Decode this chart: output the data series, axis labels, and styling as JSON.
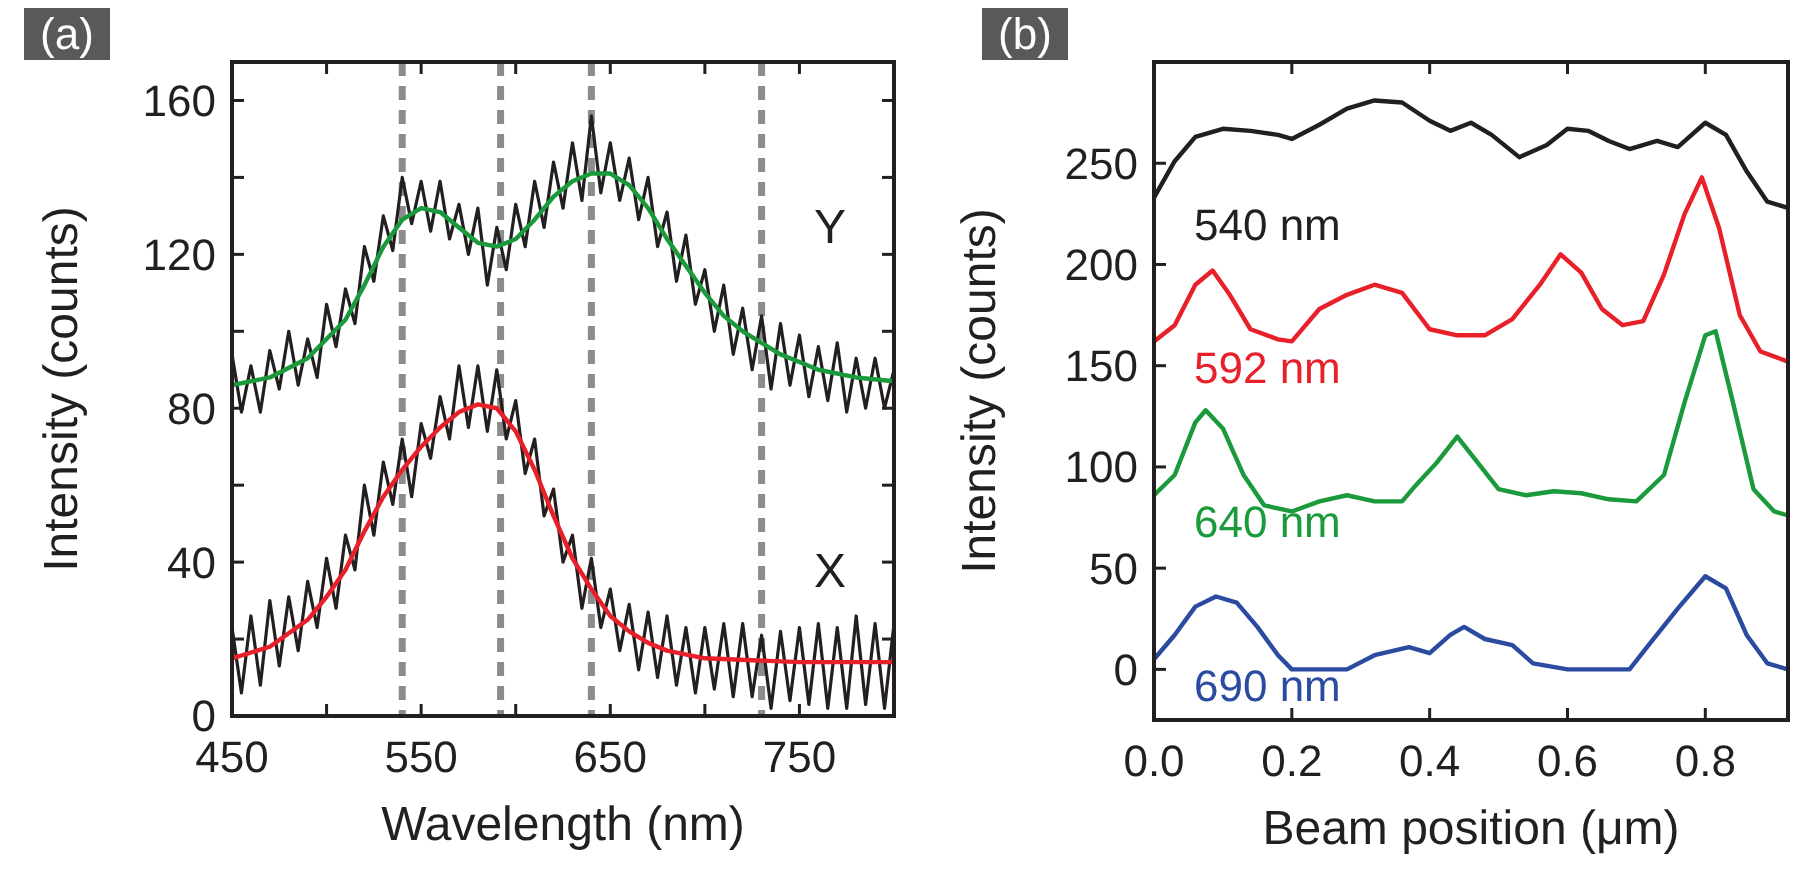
{
  "chart_data": [
    {
      "type": "line",
      "title": "(a)",
      "xlabel": "Wavelength (nm)",
      "ylabel": "Intensity (counts)",
      "xlim": [
        450,
        800
      ],
      "ylim": [
        0,
        170
      ],
      "xticks": [
        450,
        {
          "value": 500,
          "label": null
        },
        550,
        {
          "value": 600,
          "label": null
        },
        650,
        {
          "value": 700,
          "label": null
        },
        750
      ],
      "yticks": [
        0,
        {
          "value": 20,
          "label": null
        },
        40,
        {
          "value": 60,
          "label": null
        },
        80,
        {
          "value": 100,
          "label": null
        },
        120,
        {
          "value": 140,
          "label": null
        },
        160
      ],
      "ref_lines": [
        {
          "axis": "x",
          "value": 540,
          "color": "#8c8c8c",
          "line_style": "dashed"
        },
        {
          "axis": "x",
          "value": 592,
          "color": "#8c8c8c",
          "line_style": "dashed"
        },
        {
          "axis": "x",
          "value": 640,
          "color": "#8c8c8c",
          "line_style": "dashed"
        },
        {
          "axis": "x",
          "value": 730,
          "color": "#8c8c8c",
          "line_style": "dashed"
        }
      ],
      "annotations": [
        "Y",
        "X"
      ],
      "series": [
        {
          "color": "#231f20",
          "x": [
            450,
            455,
            460,
            465,
            470,
            475,
            480,
            485,
            490,
            495,
            500,
            505,
            510,
            515,
            520,
            525,
            530,
            535,
            540,
            545,
            550,
            555,
            560,
            565,
            570,
            575,
            580,
            585,
            590,
            595,
            600,
            605,
            610,
            615,
            620,
            625,
            630,
            635,
            640,
            645,
            650,
            655,
            660,
            665,
            670,
            675,
            680,
            685,
            690,
            695,
            700,
            705,
            710,
            715,
            720,
            725,
            730,
            735,
            740,
            745,
            750,
            755,
            760,
            765,
            770,
            775,
            780,
            785,
            790,
            795,
            800
          ],
          "values": [
            94,
            79,
            91,
            79,
            95,
            85,
            100,
            86,
            98,
            88,
            107,
            96,
            111,
            102,
            122,
            113,
            130,
            121,
            140,
            128,
            139,
            126,
            139,
            124,
            133,
            120,
            132,
            112,
            127,
            116,
            133,
            122,
            139,
            127,
            144,
            132,
            149,
            134,
            156,
            136,
            149,
            134,
            145,
            129,
            140,
            122,
            131,
            113,
            125,
            107,
            116,
            100,
            112,
            94,
            106,
            90,
            104,
            85,
            102,
            86,
            99,
            83,
            96,
            82,
            97,
            79,
            93,
            80,
            93,
            80,
            90
          ]
        },
        {
          "color": "#231f20",
          "x": [
            450,
            455,
            460,
            465,
            470,
            475,
            480,
            485,
            490,
            495,
            500,
            505,
            510,
            515,
            520,
            525,
            530,
            535,
            540,
            545,
            550,
            555,
            560,
            565,
            570,
            575,
            580,
            585,
            590,
            595,
            600,
            605,
            610,
            615,
            620,
            625,
            630,
            635,
            640,
            645,
            650,
            655,
            660,
            665,
            670,
            675,
            680,
            685,
            690,
            695,
            700,
            705,
            710,
            715,
            720,
            725,
            730,
            735,
            740,
            745,
            750,
            755,
            760,
            765,
            770,
            775,
            780,
            785,
            790,
            795,
            800
          ],
          "values": [
            23,
            6,
            26,
            8,
            30,
            13,
            31,
            17,
            35,
            23,
            41,
            28,
            47,
            38,
            60,
            47,
            66,
            55,
            72,
            57,
            76,
            67,
            83,
            72,
            91,
            75,
            91,
            74,
            90,
            72,
            82,
            63,
            72,
            52,
            59,
            40,
            47,
            28,
            41,
            23,
            33,
            17,
            29,
            12,
            27,
            10,
            26,
            8,
            23,
            6,
            23,
            7,
            24,
            5,
            24,
            5,
            21,
            2,
            22,
            4,
            23,
            3,
            24,
            2,
            23,
            2,
            26,
            3,
            24,
            2,
            24
          ]
        },
        {
          "color": "#1a9a3a",
          "x": [
            450,
            470,
            490,
            510,
            520,
            530,
            540,
            550,
            560,
            570,
            580,
            590,
            600,
            610,
            620,
            630,
            640,
            650,
            660,
            670,
            680,
            690,
            700,
            710,
            720,
            730,
            740,
            750,
            760,
            780,
            800
          ],
          "values": [
            86,
            88,
            93,
            103,
            112,
            122,
            129,
            132,
            131,
            127,
            123,
            122,
            124,
            129,
            135,
            139,
            141,
            141,
            138,
            132,
            124,
            117,
            110,
            104,
            100,
            97,
            94,
            92,
            90,
            88,
            87
          ]
        },
        {
          "color": "#e8202a",
          "x": [
            450,
            470,
            490,
            500,
            510,
            520,
            530,
            540,
            550,
            560,
            570,
            580,
            590,
            600,
            610,
            620,
            630,
            640,
            650,
            660,
            670,
            680,
            700,
            750,
            800
          ],
          "values": [
            15,
            18,
            25,
            31,
            38,
            48,
            57,
            64,
            70,
            75,
            79,
            81,
            80,
            74,
            64,
            52,
            41,
            33,
            26,
            22,
            19,
            17,
            15,
            14,
            14
          ]
        }
      ]
    },
    {
      "type": "line",
      "title": "(b)",
      "xlabel": "Beam position (μm)",
      "ylabel": "Intensity (counts)",
      "xlim": [
        0,
        0.92
      ],
      "ylim": [
        -25,
        300
      ],
      "xticks": [
        {
          "value": 0,
          "label": "0.0"
        },
        {
          "value": 0.2,
          "label": "0.2"
        },
        {
          "value": 0.4,
          "label": "0.4"
        },
        {
          "value": 0.6,
          "label": "0.6"
        },
        {
          "value": 0.8,
          "label": "0.8"
        }
      ],
      "yticks": [
        0,
        50,
        100,
        150,
        200,
        250
      ],
      "series": [
        {
          "name": "540 nm",
          "color": "#231f20",
          "x": [
            0,
            0.03,
            0.06,
            0.1,
            0.14,
            0.18,
            0.2,
            0.24,
            0.28,
            0.32,
            0.36,
            0.4,
            0.43,
            0.46,
            0.49,
            0.53,
            0.57,
            0.6,
            0.63,
            0.66,
            0.69,
            0.73,
            0.76,
            0.8,
            0.83,
            0.86,
            0.89,
            0.92
          ],
          "values": [
            233,
            251,
            263,
            267,
            266,
            264,
            262,
            269,
            277,
            281,
            280,
            271,
            266,
            270,
            264,
            253,
            259,
            267,
            266,
            261,
            257,
            261,
            258,
            270,
            264,
            246,
            231,
            228
          ]
        },
        {
          "name": "592 nm",
          "color": "#e8202a",
          "x": [
            0,
            0.03,
            0.06,
            0.085,
            0.11,
            0.14,
            0.18,
            0.2,
            0.24,
            0.28,
            0.32,
            0.36,
            0.4,
            0.44,
            0.48,
            0.52,
            0.56,
            0.59,
            0.62,
            0.65,
            0.68,
            0.71,
            0.74,
            0.77,
            0.795,
            0.82,
            0.85,
            0.88,
            0.92
          ],
          "values": [
            162,
            170,
            190,
            197,
            185,
            168,
            163,
            162,
            178,
            185,
            190,
            186,
            168,
            165,
            165,
            173,
            190,
            205,
            196,
            178,
            170,
            172,
            195,
            225,
            243,
            218,
            175,
            157,
            152
          ]
        },
        {
          "name": "640 nm",
          "color": "#1a9a3a",
          "x": [
            0,
            0.03,
            0.06,
            0.075,
            0.1,
            0.13,
            0.16,
            0.2,
            0.24,
            0.28,
            0.32,
            0.36,
            0.38,
            0.41,
            0.44,
            0.47,
            0.5,
            0.54,
            0.58,
            0.62,
            0.66,
            0.7,
            0.74,
            0.77,
            0.8,
            0.815,
            0.84,
            0.87,
            0.9,
            0.92
          ],
          "values": [
            86,
            96,
            122,
            128,
            119,
            96,
            81,
            78,
            83,
            86,
            83,
            83,
            91,
            102,
            115,
            102,
            89,
            86,
            88,
            87,
            84,
            83,
            96,
            132,
            165,
            167,
            132,
            89,
            78,
            76
          ]
        },
        {
          "name": "690 nm",
          "color": "#2b4ba0",
          "x": [
            0,
            0.03,
            0.06,
            0.09,
            0.12,
            0.15,
            0.18,
            0.2,
            0.28,
            0.32,
            0.37,
            0.4,
            0.43,
            0.45,
            0.48,
            0.52,
            0.55,
            0.6,
            0.69,
            0.72,
            0.76,
            0.8,
            0.83,
            0.86,
            0.89,
            0.92
          ],
          "values": [
            5,
            17,
            31,
            36,
            33,
            21,
            7,
            0,
            0,
            7,
            11,
            8,
            17,
            21,
            15,
            12,
            3,
            0,
            0,
            13,
            30,
            46,
            40,
            17,
            3,
            0
          ]
        }
      ]
    }
  ]
}
